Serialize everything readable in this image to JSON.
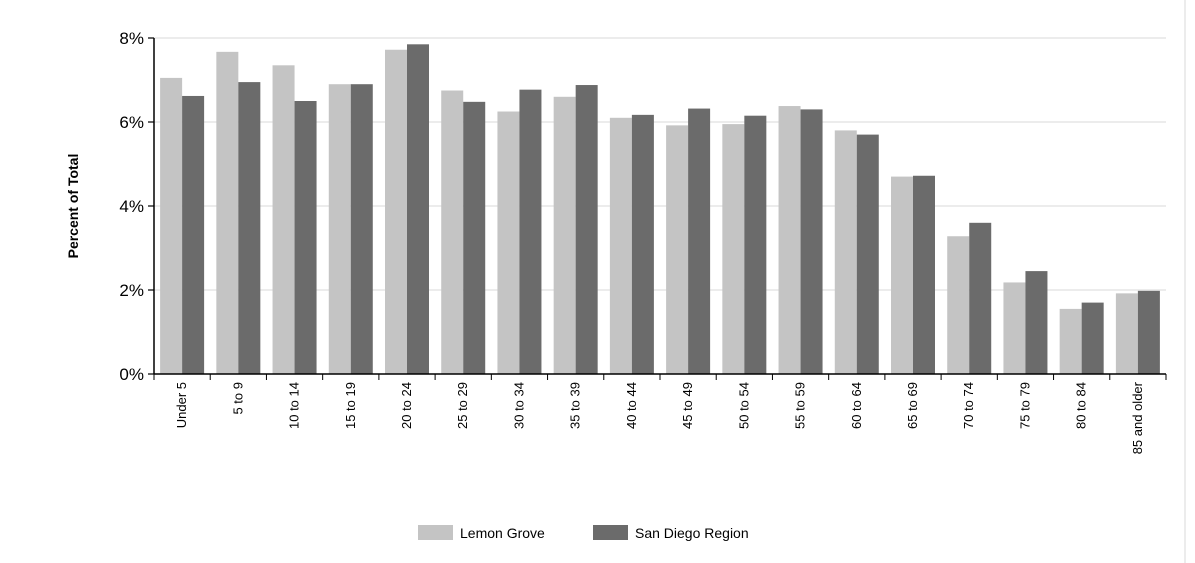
{
  "chart_data": {
    "type": "bar",
    "ylabel": "Percent of Total",
    "xlabel": "",
    "ylim": [
      0,
      8
    ],
    "y_ticks": [
      "0%",
      "2%",
      "4%",
      "6%",
      "8%"
    ],
    "grid": true,
    "legend_position": "bottom",
    "categories": [
      "Under 5",
      "5 to 9",
      "10 to 14",
      "15 to 19",
      "20 to 24",
      "25 to 29",
      "30 to 34",
      "35 to 39",
      "40 to 44",
      "45 to 49",
      "50 to 54",
      "55 to 59",
      "60 to 64",
      "65 to 69",
      "70 to 74",
      "75 to 79",
      "80 to 84",
      "85 and older"
    ],
    "series": [
      {
        "name": "Lemon Grove",
        "color": "#c4c4c4",
        "values": [
          7.05,
          7.67,
          7.35,
          6.9,
          7.72,
          6.75,
          6.25,
          6.6,
          6.1,
          5.92,
          5.95,
          6.38,
          5.8,
          4.7,
          3.28,
          2.18,
          1.55,
          1.92
        ]
      },
      {
        "name": "San Diego Region",
        "color": "#6b6b6b",
        "values": [
          6.62,
          6.95,
          6.5,
          6.9,
          7.85,
          6.48,
          6.77,
          6.88,
          6.17,
          6.32,
          6.15,
          6.3,
          5.7,
          4.72,
          3.6,
          2.45,
          1.7,
          1.98
        ]
      }
    ]
  }
}
